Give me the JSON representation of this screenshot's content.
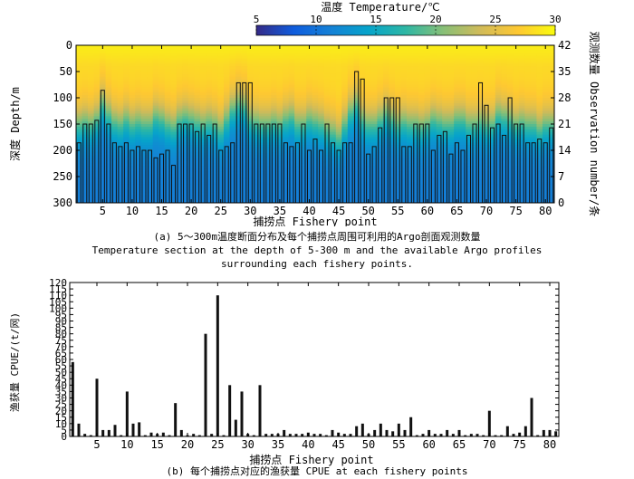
{
  "colorbar": {
    "label": "温度 Temperature/℃",
    "ticks": [
      "5",
      "10",
      "15",
      "20",
      "25",
      "30"
    ],
    "range": [
      5,
      30
    ],
    "colors": [
      "#352a87",
      "#0f5cdd",
      "#1481d6",
      "#06a4ca",
      "#2eb7a4",
      "#87bf77",
      "#d1bb59",
      "#fec832",
      "#f9fb0e"
    ]
  },
  "caption_a": {
    "zh": "(a) 5～300m温度断面分布及每个捕捞点周围可利用的Argo剖面观测数量",
    "en1": "Temperature section at the depth of 5-300 m and the available Argo profiles",
    "en2": "surrounding each fishery points."
  },
  "caption_b": {
    "text": "(b) 每个捕捞点对应的渔获量 CPUE at each fishery points"
  },
  "chart_data": [
    {
      "type": "heatmap",
      "title": "Temperature section at the depth of 5-300 m and the available Argo profiles surrounding each fishery points",
      "xlabel": "捕捞点 Fishery point",
      "ylabel": "深度 Depth/m",
      "y2label": "观测数量 Observation number/条",
      "xlim": [
        0.5,
        81.5
      ],
      "ylim": [
        0,
        300
      ],
      "y2lim": [
        0,
        42
      ],
      "xticks": [
        "5",
        "10",
        "15",
        "20",
        "25",
        "30",
        "35",
        "40",
        "45",
        "50",
        "55",
        "60",
        "65",
        "70",
        "75",
        "80"
      ],
      "yticks": [
        "0",
        "50",
        "100",
        "150",
        "200",
        "250",
        "300"
      ],
      "y2ticks": [
        "0",
        "7",
        "14",
        "21",
        "28",
        "35",
        "42"
      ],
      "thermocline_depth_m": [
        150,
        145,
        150,
        140,
        110,
        130,
        145,
        150,
        140,
        150,
        145,
        150,
        150,
        135,
        140,
        150,
        155,
        140,
        135,
        140,
        145,
        150,
        145,
        150,
        160,
        140,
        120,
        110,
        115,
        140,
        145,
        150,
        150,
        145,
        150,
        140,
        135,
        150,
        150,
        140,
        145,
        150,
        160,
        165,
        175,
        150,
        125,
        110,
        140,
        150,
        150,
        140,
        130,
        140,
        150,
        145,
        150,
        150,
        155,
        150,
        140,
        145,
        150,
        150,
        140,
        140,
        150,
        150,
        145,
        150,
        150,
        130,
        135,
        140,
        150,
        145,
        150,
        150,
        160,
        150,
        150
      ],
      "observation_counts": [
        16,
        21,
        21,
        22,
        30,
        21,
        16,
        15,
        16,
        14,
        15,
        14,
        14,
        12,
        13,
        14,
        10,
        21,
        21,
        21,
        19,
        21,
        18,
        21,
        14,
        15,
        16,
        32,
        32,
        32,
        21,
        21,
        21,
        21,
        21,
        16,
        15,
        16,
        21,
        14,
        17,
        14,
        21,
        16,
        14,
        16,
        16,
        35,
        33,
        13,
        15,
        20,
        28,
        28,
        28,
        15,
        15,
        21,
        21,
        21,
        14,
        18,
        19,
        13,
        16,
        14,
        18,
        21,
        32,
        26,
        20,
        21,
        18,
        28,
        21,
        21,
        16,
        16,
        17,
        16,
        20
      ]
    },
    {
      "type": "bar",
      "title": "CPUE at each fishery points",
      "xlabel": "捕捞点 Fishery point",
      "ylabel": "渔获量 CPUE/(t/网)",
      "xlim": [
        0.5,
        81.5
      ],
      "ylim": [
        0,
        120
      ],
      "xticks": [
        "5",
        "10",
        "15",
        "20",
        "25",
        "30",
        "35",
        "40",
        "45",
        "50",
        "55",
        "60",
        "65",
        "70",
        "75",
        "80"
      ],
      "yticks": [
        "0",
        "5",
        "10",
        "15",
        "20",
        "25",
        "30",
        "35",
        "40",
        "45",
        "50",
        "55",
        "60",
        "65",
        "70",
        "75",
        "80",
        "85",
        "90",
        "95",
        "100",
        "105",
        "110",
        "115",
        "120"
      ],
      "values": [
        58,
        10,
        2,
        1,
        45,
        5,
        5,
        9,
        1,
        35,
        10,
        11,
        1,
        3,
        2,
        3,
        1,
        26,
        5,
        1,
        2,
        1,
        80,
        2,
        110,
        1,
        40,
        13,
        35,
        2,
        1,
        40,
        2,
        2,
        2,
        5,
        2,
        2,
        2,
        3,
        2,
        2,
        1,
        5,
        3,
        2,
        2,
        8,
        10,
        2,
        5,
        10,
        5,
        4,
        10,
        5,
        15,
        1,
        2,
        5,
        2,
        2,
        5,
        2,
        5,
        1,
        2,
        2,
        1,
        20,
        1,
        1,
        8,
        2,
        3,
        8,
        30,
        1,
        5,
        5,
        4
      ]
    }
  ]
}
